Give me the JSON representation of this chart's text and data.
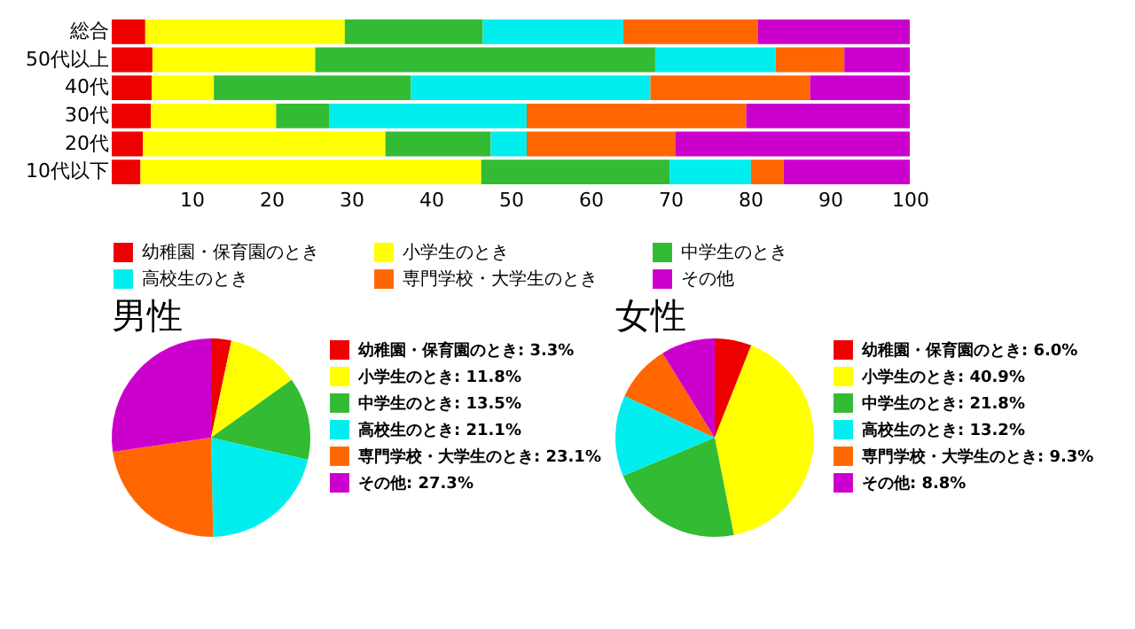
{
  "chart_data": [
    {
      "type": "bar",
      "orientation": "horizontal",
      "stacked": true,
      "categories": [
        "総合",
        "50代以上",
        "40代",
        "30代",
        "20代",
        "10代以下"
      ],
      "series": [
        {
          "name": "幼稚園・保育園のとき",
          "color": "#ee0000",
          "values": [
            4.2,
            5.1,
            5.0,
            4.9,
            3.9,
            3.6
          ]
        },
        {
          "name": "小学生のとき",
          "color": "#ffff00",
          "values": [
            25.0,
            20.4,
            7.8,
            15.7,
            30.4,
            42.7
          ]
        },
        {
          "name": "中学生のとき",
          "color": "#33bb33",
          "values": [
            17.3,
            42.6,
            24.7,
            6.7,
            13.2,
            23.6
          ]
        },
        {
          "name": "高校生のとき",
          "color": "#00eeee",
          "values": [
            17.6,
            15.1,
            30.0,
            24.7,
            4.5,
            10.2
          ]
        },
        {
          "name": "専門学校・大学生のとき",
          "color": "#ff6600",
          "values": [
            16.9,
            8.6,
            20.0,
            27.5,
            18.6,
            4.1
          ]
        },
        {
          "name": "その他",
          "color": "#cc00cc",
          "values": [
            19.0,
            8.2,
            12.5,
            20.5,
            29.4,
            15.8
          ]
        }
      ],
      "xlim": [
        0,
        100
      ],
      "xticks": [
        10,
        20,
        30,
        40,
        50,
        60,
        70,
        80,
        90,
        100
      ],
      "legend": "bottom"
    },
    {
      "type": "pie",
      "title": "男性",
      "categories": [
        "幼稚園・保育園のとき",
        "小学生のとき",
        "中学生のとき",
        "高校生のとき",
        "専門学校・大学生のとき",
        "その他"
      ],
      "values": [
        3.3,
        11.8,
        13.5,
        21.1,
        23.1,
        27.3
      ],
      "value_labels": [
        "3.3%",
        "11.8%",
        "13.5%",
        "21.1%",
        "23.1%",
        "27.3%"
      ],
      "colors": [
        "#ee0000",
        "#ffff00",
        "#33bb33",
        "#00eeee",
        "#ff6600",
        "#cc00cc"
      ],
      "legend": "right"
    },
    {
      "type": "pie",
      "title": "女性",
      "categories": [
        "幼稚園・保育園のとき",
        "小学生のとき",
        "中学生のとき",
        "高校生のとき",
        "専門学校・大学生のとき",
        "その他"
      ],
      "values": [
        6.0,
        40.9,
        21.8,
        13.2,
        9.3,
        8.8
      ],
      "value_labels": [
        "6.0%",
        "40.9%",
        "21.8%",
        "13.2%",
        "9.3%",
        "8.8%"
      ],
      "colors": [
        "#ee0000",
        "#ffff00",
        "#33bb33",
        "#00eeee",
        "#ff6600",
        "#cc00cc"
      ],
      "legend": "right"
    }
  ]
}
